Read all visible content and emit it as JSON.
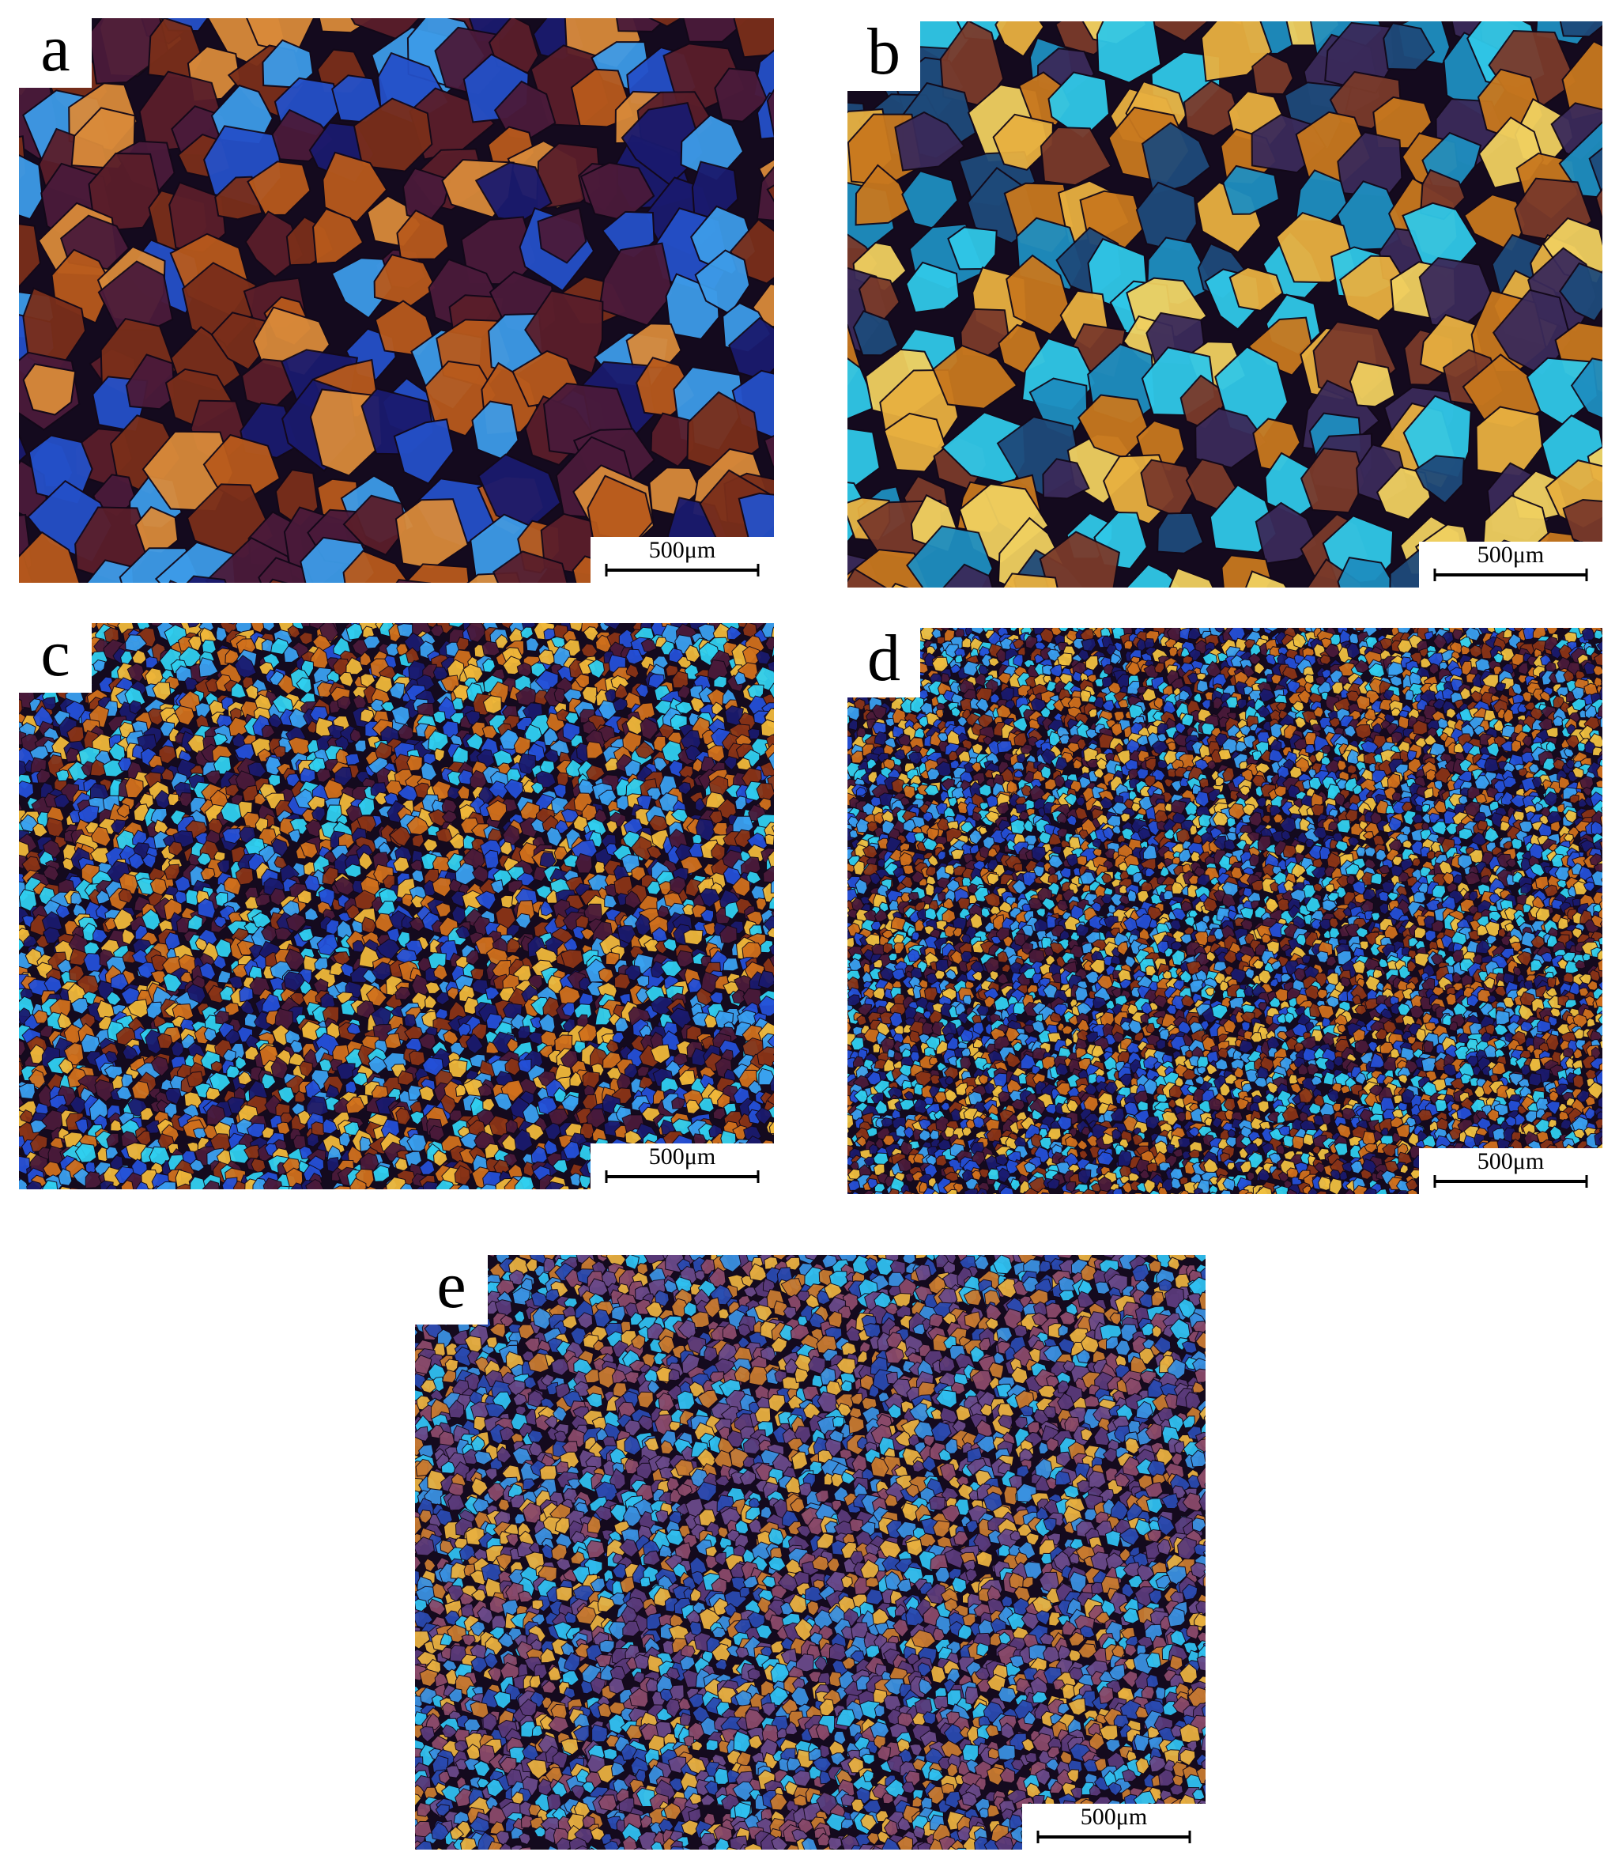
{
  "panels": [
    {
      "label": "a",
      "scale_bar": "500μm"
    },
    {
      "label": "b",
      "scale_bar": "500μm"
    },
    {
      "label": "c",
      "scale_bar": "500μm"
    },
    {
      "label": "d",
      "scale_bar": "500μm"
    },
    {
      "label": "e",
      "scale_bar": "500μm"
    }
  ]
}
